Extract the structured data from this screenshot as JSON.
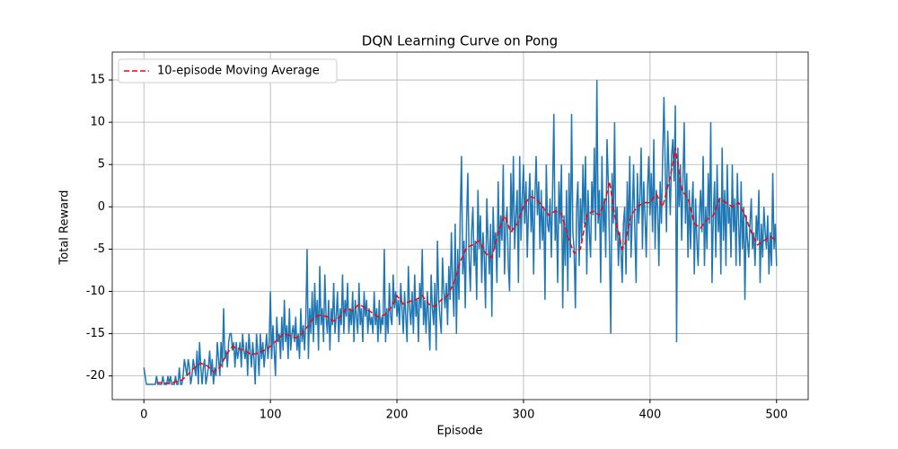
{
  "chart_data": {
    "type": "line",
    "title": "DQN Learning Curve on Pong",
    "xlabel": "Episode",
    "ylabel": "Total Reward",
    "xlim": [
      -25,
      525
    ],
    "ylim": [
      -22.8,
      18.3
    ],
    "xticks": [
      0,
      100,
      200,
      300,
      400,
      500
    ],
    "yticks": [
      -20,
      -15,
      -10,
      -5,
      0,
      5,
      10,
      15
    ],
    "grid": true,
    "legend": "upper left",
    "series": [
      {
        "color": "#1f77b4",
        "linestyle": "solid",
        "x": [
          0,
          1,
          2,
          3,
          4,
          5,
          6,
          7,
          8,
          9,
          10,
          11,
          12,
          13,
          14,
          15,
          16,
          17,
          18,
          19,
          20,
          21,
          22,
          23,
          24,
          25,
          26,
          27,
          28,
          29,
          30,
          31,
          32,
          33,
          34,
          35,
          36,
          37,
          38,
          39,
          40,
          41,
          42,
          43,
          44,
          45,
          46,
          47,
          48,
          49,
          50,
          51,
          52,
          53,
          54,
          55,
          56,
          57,
          58,
          59,
          60,
          61,
          62,
          63,
          64,
          65,
          66,
          67,
          68,
          69,
          70,
          71,
          72,
          73,
          74,
          75,
          76,
          77,
          78,
          79,
          80,
          81,
          82,
          83,
          84,
          85,
          86,
          87,
          88,
          89,
          90,
          91,
          92,
          93,
          94,
          95,
          96,
          97,
          98,
          99,
          100,
          101,
          102,
          103,
          104,
          105,
          106,
          107,
          108,
          109,
          110,
          111,
          112,
          113,
          114,
          115,
          116,
          117,
          118,
          119,
          120,
          121,
          122,
          123,
          124,
          125,
          126,
          127,
          128,
          129,
          130,
          131,
          132,
          133,
          134,
          135,
          136,
          137,
          138,
          139,
          140,
          141,
          142,
          143,
          144,
          145,
          146,
          147,
          148,
          149,
          150,
          151,
          152,
          153,
          154,
          155,
          156,
          157,
          158,
          159,
          160,
          161,
          162,
          163,
          164,
          165,
          166,
          167,
          168,
          169,
          170,
          171,
          172,
          173,
          174,
          175,
          176,
          177,
          178,
          179,
          180,
          181,
          182,
          183,
          184,
          185,
          186,
          187,
          188,
          189,
          190,
          191,
          192,
          193,
          194,
          195,
          196,
          197,
          198,
          199,
          200,
          201,
          202,
          203,
          204,
          205,
          206,
          207,
          208,
          209,
          210,
          211,
          212,
          213,
          214,
          215,
          216,
          217,
          218,
          219,
          220,
          221,
          222,
          223,
          224,
          225,
          226,
          227,
          228,
          229,
          230,
          231,
          232,
          233,
          234,
          235,
          236,
          237,
          238,
          239,
          240,
          241,
          242,
          243,
          244,
          245,
          246,
          247,
          248,
          249,
          250,
          251,
          252,
          253,
          254,
          255,
          256,
          257,
          258,
          259,
          260,
          261,
          262,
          263,
          264,
          265,
          266,
          267,
          268,
          269,
          270,
          271,
          272,
          273,
          274,
          275,
          276,
          277,
          278,
          279,
          280,
          281,
          282,
          283,
          284,
          285,
          286,
          287,
          288,
          289,
          290,
          291,
          292,
          293,
          294,
          295,
          296,
          297,
          298,
          299,
          300,
          301,
          302,
          303,
          304,
          305,
          306,
          307,
          308,
          309,
          310,
          311,
          312,
          313,
          314,
          315,
          316,
          317,
          318,
          319,
          320,
          321,
          322,
          323,
          324,
          325,
          326,
          327,
          328,
          329,
          330,
          331,
          332,
          333,
          334,
          335,
          336,
          337,
          338,
          339,
          340,
          341,
          342,
          343,
          344,
          345,
          346,
          347,
          348,
          349,
          350,
          351,
          352,
          353,
          354,
          355,
          356,
          357,
          358,
          359,
          360,
          361,
          362,
          363,
          364,
          365,
          366,
          367,
          368,
          369,
          370,
          371,
          372,
          373,
          374,
          375,
          376,
          377,
          378,
          379,
          380,
          381,
          382,
          383,
          384,
          385,
          386,
          387,
          388,
          389,
          390,
          391,
          392,
          393,
          394,
          395,
          396,
          397,
          398,
          399,
          400,
          401,
          402,
          403,
          404,
          405,
          406,
          407,
          408,
          409,
          410,
          411,
          412,
          413,
          414,
          415,
          416,
          417,
          418,
          419,
          420,
          421,
          422,
          423,
          424,
          425,
          426,
          427,
          428,
          429,
          430,
          431,
          432,
          433,
          434,
          435,
          436,
          437,
          438,
          439,
          440,
          441,
          442,
          443,
          444,
          445,
          446,
          447,
          448,
          449,
          450,
          451,
          452,
          453,
          454,
          455,
          456,
          457,
          458,
          459,
          460,
          461,
          462,
          463,
          464,
          465,
          466,
          467,
          468,
          469,
          470,
          471,
          472,
          473,
          474,
          475,
          476,
          477,
          478,
          479,
          480,
          481,
          482,
          483,
          484,
          485,
          486,
          487,
          488,
          489,
          490,
          491,
          492,
          493,
          494,
          495,
          496,
          497,
          498,
          499,
          500
        ],
        "values": [
          -19,
          -20,
          -21,
          -21,
          -21,
          -21,
          -21,
          -21,
          -21,
          -21,
          -20,
          -21,
          -21,
          -21,
          -21,
          -20,
          -21,
          -21,
          -21,
          -20,
          -21,
          -20,
          -21,
          -21,
          -21,
          -20,
          -21,
          -21,
          -19,
          -21,
          -21,
          -20,
          -18,
          -19,
          -20,
          -18,
          -19,
          -21,
          -20,
          -18,
          -19,
          -20,
          -17,
          -21,
          -16,
          -19,
          -21,
          -19,
          -18,
          -21,
          -20,
          -19,
          -17,
          -20,
          -18,
          -21,
          -19,
          -20,
          -16,
          -18,
          -20,
          -16,
          -19,
          -12,
          -18,
          -17,
          -19,
          -16,
          -15,
          -15,
          -17,
          -16,
          -19,
          -16,
          -18,
          -17,
          -16,
          -19,
          -15,
          -17,
          -18,
          -16,
          -20,
          -15,
          -17,
          -19,
          -16,
          -18,
          -21,
          -15,
          -17,
          -20,
          -15,
          -18,
          -16,
          -19,
          -17,
          -15,
          -18,
          -16,
          -10,
          -18,
          -14,
          -17,
          -20,
          -13,
          -16,
          -15,
          -18,
          -13,
          -17,
          -11,
          -16,
          -14,
          -18,
          -12,
          -17,
          -15,
          -14,
          -16,
          -13,
          -17,
          -15,
          -18,
          -12,
          -16,
          -14,
          -17,
          -13,
          -5,
          -18,
          -12,
          -15,
          -10,
          -16,
          -9,
          -14,
          -11,
          -17,
          -7,
          -14,
          -12,
          -16,
          -8,
          -13,
          -15,
          -11,
          -17,
          -12,
          -14,
          -9,
          -15,
          -13,
          -10,
          -16,
          -12,
          -14,
          -8,
          -15,
          -11,
          -13,
          -9,
          -15,
          -12,
          -14,
          -10,
          -16,
          -11,
          -13,
          -15,
          -9,
          -14,
          -12,
          -16,
          -10,
          -13,
          -11,
          -15,
          -12,
          -14,
          -13,
          -15,
          -10,
          -14,
          -12,
          -16,
          -11,
          -15,
          -13,
          -14,
          -5,
          -16,
          -12,
          -15,
          -9,
          -13,
          -14,
          -8,
          -12,
          -10,
          -13,
          -11,
          -14,
          -9,
          -12,
          -15,
          -10,
          -13,
          -16,
          -7,
          -12,
          -14,
          -10,
          -15,
          -8,
          -13,
          -11,
          -16,
          -9,
          -12,
          -5,
          -14,
          -11,
          -15,
          -10,
          -13,
          -17,
          -8,
          -12,
          -14,
          -9,
          -17,
          -4,
          -11,
          -13,
          -15,
          -6,
          -10,
          -12,
          -9,
          -14,
          -7,
          -11,
          -3,
          -9,
          -13,
          -2,
          -15,
          -5,
          -11,
          -1,
          6,
          -8,
          -4,
          -12,
          -2,
          4,
          -6,
          -10,
          -3,
          0,
          -7,
          -4,
          -11,
          2,
          -5,
          -1,
          -9,
          -3,
          -6,
          -12,
          1,
          -4,
          -8,
          -2,
          -13,
          0,
          -5,
          -3,
          -9,
          3,
          -6,
          -1,
          -4,
          5,
          -8,
          -2,
          0,
          -7,
          -10,
          4,
          -3,
          6,
          -5,
          -1,
          2,
          -9,
          6,
          -4,
          1,
          5,
          -2,
          3,
          -6,
          0,
          4,
          -3,
          2,
          -8,
          1,
          6,
          -1,
          3,
          -5,
          2,
          -4,
          0,
          -11,
          5,
          -2,
          -3,
          1,
          -6,
          2,
          11,
          -4,
          0,
          -9,
          3,
          -2,
          5,
          -12,
          -1,
          -7,
          2,
          -10,
          4,
          -6,
          11,
          -3,
          -5,
          -12,
          0,
          3,
          -7,
          1,
          -4,
          5,
          -2,
          6,
          -8,
          2,
          -3,
          -6,
          3,
          -1,
          7,
          -4,
          15,
          -2,
          2,
          -9,
          6,
          -3,
          1,
          -6,
          8,
          3,
          -5,
          -15,
          4,
          -2,
          10,
          -4,
          0,
          -7,
          -3,
          -5,
          -9,
          -2,
          0,
          -8,
          3,
          -4,
          6,
          -6,
          -1,
          5,
          -3,
          -9,
          4,
          -2,
          1,
          7,
          -5,
          3,
          -1,
          -6,
          2,
          6,
          -1,
          4,
          -3,
          8,
          -5,
          2,
          0,
          -7,
          3,
          -2,
          6,
          13,
          5,
          -3,
          9,
          4,
          -1,
          6,
          8,
          3,
          12,
          -16,
          7,
          0,
          5,
          -4,
          3,
          10,
          -2,
          4,
          -6,
          2,
          -5,
          0,
          3,
          -8,
          1,
          -4,
          -7,
          -1,
          2,
          -3,
          6,
          -7,
          0,
          -5,
          4,
          -2,
          10,
          -9,
          -1,
          3,
          -6,
          5,
          -3,
          1,
          -8,
          7,
          -4,
          2,
          -7,
          5,
          -2,
          0,
          -6,
          5,
          -3,
          1,
          -7,
          4,
          -2,
          -7,
          3,
          -5,
          0,
          -11,
          -1,
          -4,
          -6,
          -2,
          1,
          -5,
          -3,
          -7,
          -1,
          -4,
          2,
          -9,
          -2,
          -6,
          0,
          -3,
          -5,
          -1,
          -8,
          -3,
          -7,
          4,
          -5,
          -2,
          -7
        ]
      },
      {
        "name": "10-episode Moving Average",
        "color": "#ff0000",
        "linestyle": "dashed",
        "x": [
          10,
          15,
          20,
          25,
          30,
          35,
          40,
          45,
          50,
          55,
          60,
          65,
          70,
          75,
          80,
          85,
          90,
          95,
          100,
          105,
          110,
          115,
          120,
          125,
          130,
          135,
          140,
          145,
          150,
          155,
          160,
          165,
          170,
          175,
          180,
          185,
          190,
          195,
          200,
          205,
          210,
          215,
          220,
          225,
          230,
          235,
          240,
          245,
          250,
          255,
          260,
          265,
          270,
          275,
          280,
          285,
          290,
          295,
          300,
          305,
          310,
          315,
          320,
          325,
          330,
          335,
          340,
          345,
          350,
          355,
          360,
          365,
          368,
          372,
          375,
          378,
          380,
          385,
          390,
          395,
          400,
          405,
          410,
          415,
          418,
          420,
          423,
          425,
          430,
          435,
          440,
          445,
          450,
          455,
          460,
          465,
          470,
          475,
          480,
          485,
          490,
          495,
          500
        ],
        "values": [
          -20.8,
          -20.8,
          -20.9,
          -20.7,
          -20.5,
          -19.8,
          -19,
          -18.5,
          -18.8,
          -19.5,
          -19,
          -17.5,
          -16.5,
          -16.8,
          -17,
          -17.5,
          -17.3,
          -17,
          -16.5,
          -15.8,
          -15,
          -15.2,
          -15.5,
          -15,
          -14,
          -13,
          -12.8,
          -13,
          -13.5,
          -13,
          -12,
          -12.3,
          -11.5,
          -12,
          -12.5,
          -13,
          -12.8,
          -12,
          -10.5,
          -11.5,
          -11.2,
          -11,
          -10.5,
          -11.5,
          -11.8,
          -11,
          -10.5,
          -9,
          -6.5,
          -4.8,
          -4.5,
          -4,
          -5.5,
          -6,
          -3,
          -1,
          -3,
          -2,
          0,
          1.2,
          1,
          0,
          -1,
          -0.5,
          -0.8,
          -3.5,
          -5.5,
          -5,
          -1,
          -0.5,
          -1,
          1,
          3,
          -1,
          -3,
          -5,
          -4.5,
          -1,
          0,
          0.5,
          0.5,
          1.5,
          0,
          3,
          5,
          7,
          4,
          2,
          1,
          -2,
          -2.5,
          -1.5,
          -1,
          1,
          0.5,
          0,
          0.5,
          -1,
          -3,
          -4.5,
          -4,
          -3.5,
          -4
        ]
      }
    ]
  }
}
